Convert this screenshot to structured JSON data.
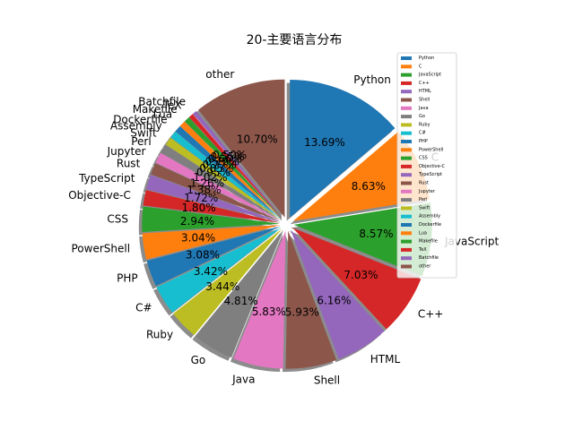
{
  "chart_data": {
    "type": "pie",
    "title": "20-主要语言分布",
    "legend_position": "upper-right",
    "exploded": true,
    "shadow": true,
    "categories": [
      "Python",
      "C",
      "JavaScript",
      "C++",
      "HTML",
      "Shell",
      "Java",
      "Go",
      "Ruby",
      "C#",
      "PHP",
      "PowerShell",
      "CSS",
      "Objective-C",
      "TypeScript",
      "Rust",
      "Jupyter",
      "Perl",
      "Swift",
      "Assembly",
      "Dockerfile",
      "Lua",
      "Makefile",
      "TeX",
      "Batchfile",
      "other"
    ],
    "values": [
      13.69,
      8.63,
      8.57,
      7.03,
      6.16,
      5.93,
      5.83,
      4.81,
      3.44,
      3.42,
      3.08,
      3.04,
      2.94,
      1.8,
      1.72,
      1.38,
      1.26,
      1.02,
      0.95,
      0.85,
      0.77,
      0.72,
      0.66,
      0.55,
      0.5,
      10.7
    ],
    "percent_labels": [
      "13.69%",
      "8.63%",
      "8.57%",
      "7.03%",
      "6.16%",
      "5.93%",
      "5.83%",
      "4.81%",
      "3.44%",
      "3.42%",
      "3.08%",
      "3.04%",
      "2.94%",
      "1.80%",
      "1.72%",
      "1.38%",
      "1.26%",
      "1.02%",
      "0.95%",
      "0.85%",
      "0.77%",
      "0.72%",
      "0.66%",
      "0.55%",
      "0.50%",
      "10.70%"
    ],
    "colors": [
      "#1f77b4",
      "#ff7f0e",
      "#2ca02c",
      "#d62728",
      "#9467bd",
      "#8c564b",
      "#e377c2",
      "#7f7f7f",
      "#bcbd22",
      "#17becf",
      "#1f77b4",
      "#ff7f0e",
      "#2ca02c",
      "#d62728",
      "#9467bd",
      "#8c564b",
      "#e377c2",
      "#7f7f7f",
      "#bcbd22",
      "#17becf",
      "#1f77b4",
      "#ff7f0e",
      "#2ca02c",
      "#d62728",
      "#9467bd",
      "#8c564b"
    ]
  }
}
